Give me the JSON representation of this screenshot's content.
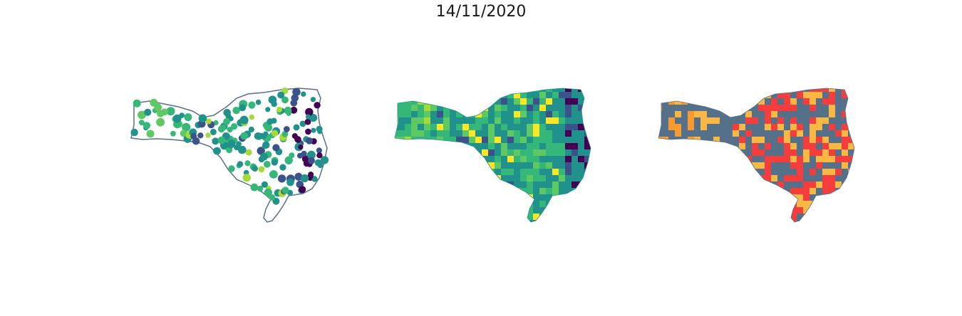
{
  "title": "14/11/2020",
  "colors": {
    "viridis": [
      "#440154",
      "#3b528b",
      "#21918c",
      "#35b779",
      "#5ec962",
      "#a5db36",
      "#fde725"
    ],
    "outline": "#5b6f8a",
    "categorical": {
      "base": "#557089",
      "orange": "#f9b843",
      "red": "#f53d3d",
      "dark-orange": "#f89a2e"
    }
  },
  "maps": [
    {
      "name": "points-map",
      "kind": "proportional-symbol"
    },
    {
      "name": "choropleth-map",
      "kind": "choropleth"
    },
    {
      "name": "category-map",
      "kind": "categorical-choropleth"
    }
  ]
}
